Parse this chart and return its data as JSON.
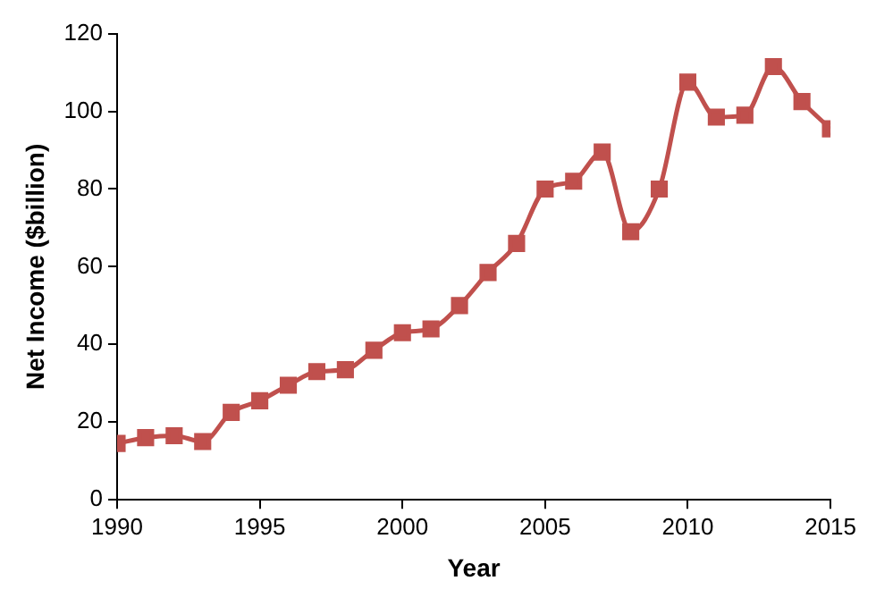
{
  "chart_data": {
    "type": "line",
    "xlabel": "Year",
    "ylabel": "Net Income ($billion)",
    "x": [
      1990,
      1991,
      1992,
      1993,
      1994,
      1995,
      1996,
      1997,
      1998,
      1999,
      2000,
      2001,
      2002,
      2003,
      2004,
      2005,
      2006,
      2007,
      2008,
      2009,
      2010,
      2011,
      2012,
      2013,
      2014,
      2015
    ],
    "series": [
      {
        "color": "#c0504d",
        "values": [
          14.5,
          16,
          16.5,
          15,
          22.5,
          25.5,
          29.5,
          33,
          33.5,
          38.5,
          43,
          44,
          50,
          58.5,
          66,
          80,
          82,
          89.5,
          69,
          80,
          107.5,
          98.5,
          99,
          111.5,
          102.5,
          95.5
        ]
      }
    ],
    "xlim": [
      1990,
      2015
    ],
    "xticks": [
      1990,
      1995,
      2000,
      2005,
      2010,
      2015
    ],
    "ylim": [
      0,
      120
    ],
    "yticks": [
      0,
      20,
      40,
      60,
      80,
      100,
      120
    ],
    "grid": false,
    "legend": false,
    "marker": "square",
    "line_style": "solid"
  }
}
